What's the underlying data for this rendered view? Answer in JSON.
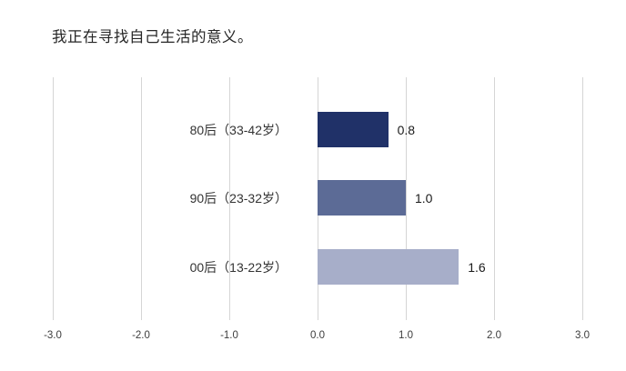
{
  "chart_data": {
    "type": "bar",
    "orientation": "horizontal",
    "title": "我正在寻找自己生活的意义。",
    "categories": [
      "80后（33-42岁）",
      "90后（23-32岁）",
      "00后（13-22岁）"
    ],
    "values": [
      0.8,
      1.0,
      1.6
    ],
    "value_labels": [
      "0.8",
      "1.0",
      "1.6"
    ],
    "bar_colors": [
      "#203168",
      "#5c6b96",
      "#a7aec9"
    ],
    "xlabel": "",
    "ylabel": "",
    "xlim": [
      -3.0,
      3.0
    ],
    "xtick_labels": [
      "-3.0",
      "-2.0",
      "-1.0",
      "0.0",
      "1.0",
      "2.0",
      "3.0"
    ],
    "xtick_values": [
      -3,
      -2,
      -1,
      0,
      1,
      2,
      3
    ],
    "grid": "vertical-gridlines-on",
    "gridline_color": "#d5d5d5",
    "legend": "none",
    "background_color": "#ffffff",
    "title_color": "#262626",
    "label_color": "#333333",
    "value_label_color": "#1a1a1a"
  }
}
